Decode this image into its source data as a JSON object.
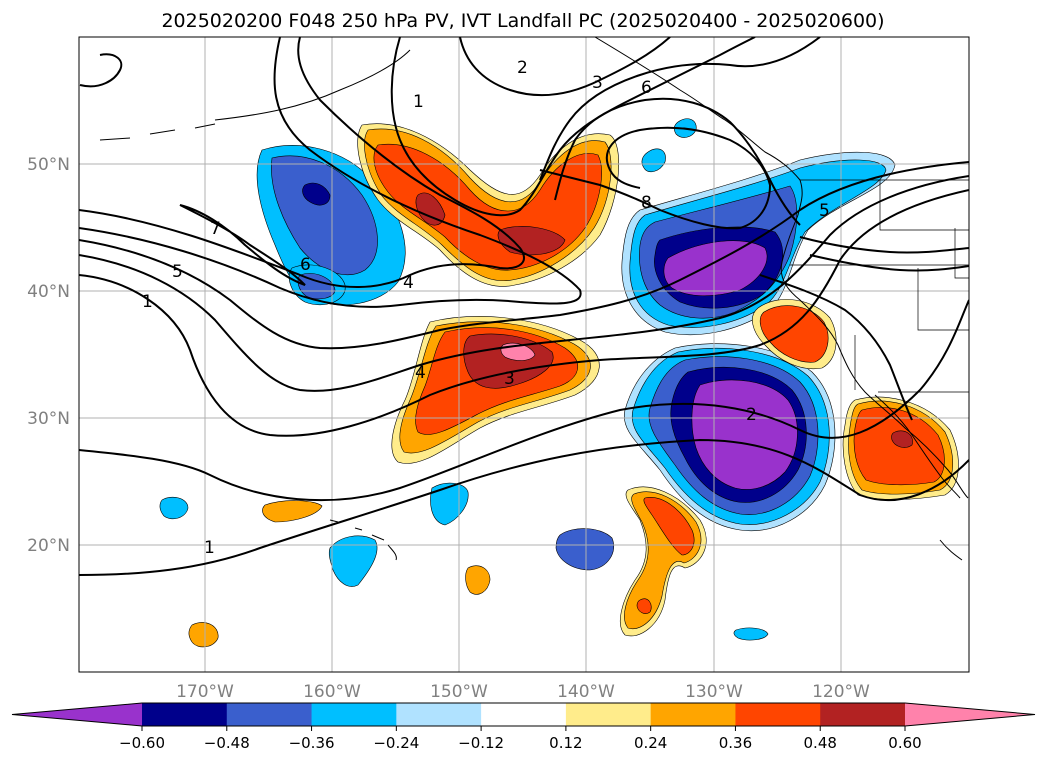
{
  "title": "2025020200 F048 250 hPa PV, IVT Landfall PC (2025020400 - 2025020600)",
  "lat_labels": [
    "50°N",
    "40°N",
    "30°N",
    "20°N"
  ],
  "lon_labels": [
    "170°W",
    "160°W",
    "150°W",
    "140°W",
    "130°W",
    "120°W"
  ],
  "contour_labels": [
    "1",
    "2",
    "3",
    "6",
    "7",
    "5",
    "1",
    "6",
    "4",
    "8",
    "5",
    "4",
    "3",
    "2",
    "1"
  ],
  "colorbar": {
    "ticks": [
      "−0.60",
      "−0.48",
      "−0.36",
      "−0.24",
      "−0.12",
      "0.12",
      "0.24",
      "0.36",
      "0.48",
      "0.60"
    ],
    "colors": [
      "#9932CC",
      "#00008B",
      "#3A5FCD",
      "#00BFFF",
      "#B0E2FF",
      "#FFFFFF",
      "#FFEC8B",
      "#FFA500",
      "#FF4500",
      "#B22222",
      "#FF82AB"
    ]
  },
  "chart_data": {
    "type": "heatmap",
    "map_extent": {
      "lon": [
        -180,
        -110
      ],
      "lat": [
        10,
        60
      ]
    },
    "shading_variable": "IVT Landfall PC",
    "contour_variable": "250 hPa PV",
    "shading_levels": [
      -0.6,
      -0.48,
      -0.36,
      -0.24,
      -0.12,
      0.12,
      0.24,
      0.36,
      0.48,
      0.6
    ],
    "contour_levels": [
      1,
      2,
      3,
      4,
      5,
      6,
      7,
      8
    ],
    "grid": true
  }
}
